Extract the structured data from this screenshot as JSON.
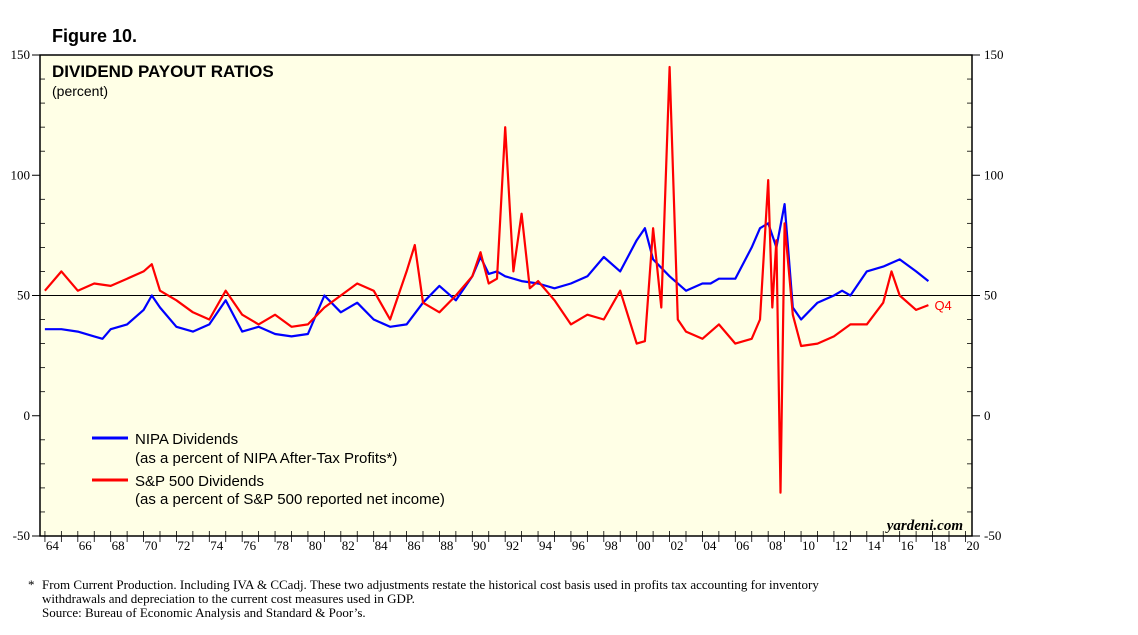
{
  "figure_label": "Figure 10.",
  "colors": {
    "background": "#FFFFE6",
    "nipa": "#0000FF",
    "sp500": "#FF0000",
    "frame": "#000000"
  },
  "chart_data": {
    "type": "line",
    "title": "DIVIDEND PAYOUT RATIOS",
    "subtitle": "(percent)",
    "source_mark": "yardeni.com",
    "xlim": [
      1963.7,
      2020.4
    ],
    "ylim": [
      -50,
      150
    ],
    "y_ticks": [
      -50,
      0,
      50,
      100,
      150
    ],
    "x_ticks": [
      {
        "year": 1964,
        "label": "64"
      },
      {
        "year": 1966,
        "label": "66"
      },
      {
        "year": 1968,
        "label": "68"
      },
      {
        "year": 1970,
        "label": "70"
      },
      {
        "year": 1972,
        "label": "72"
      },
      {
        "year": 1974,
        "label": "74"
      },
      {
        "year": 1976,
        "label": "76"
      },
      {
        "year": 1978,
        "label": "78"
      },
      {
        "year": 1980,
        "label": "80"
      },
      {
        "year": 1982,
        "label": "82"
      },
      {
        "year": 1984,
        "label": "84"
      },
      {
        "year": 1986,
        "label": "86"
      },
      {
        "year": 1988,
        "label": "88"
      },
      {
        "year": 1990,
        "label": "90"
      },
      {
        "year": 1992,
        "label": "92"
      },
      {
        "year": 1994,
        "label": "94"
      },
      {
        "year": 1996,
        "label": "96"
      },
      {
        "year": 1998,
        "label": "98"
      },
      {
        "year": 2000,
        "label": "00"
      },
      {
        "year": 2002,
        "label": "02"
      },
      {
        "year": 2004,
        "label": "04"
      },
      {
        "year": 2006,
        "label": "06"
      },
      {
        "year": 2008,
        "label": "08"
      },
      {
        "year": 2010,
        "label": "10"
      },
      {
        "year": 2012,
        "label": "12"
      },
      {
        "year": 2014,
        "label": "14"
      },
      {
        "year": 2016,
        "label": "16"
      },
      {
        "year": 2018,
        "label": "18"
      },
      {
        "year": 2020,
        "label": "20"
      }
    ],
    "reference_line": 50,
    "annotation": {
      "text": "Q4",
      "x": 2017.75,
      "y": 46
    },
    "series": [
      {
        "name": "NIPA Dividends",
        "legend_note": "(as a percent of NIPA After-Tax Profits*)",
        "color": "#0000FF",
        "x": [
          1964,
          1965,
          1966,
          1967,
          1967.5,
          1968,
          1969,
          1970,
          1970.5,
          1971,
          1972,
          1973,
          1974,
          1975,
          1976,
          1977,
          1978,
          1979,
          1980,
          1981,
          1982,
          1983,
          1984,
          1985,
          1986,
          1987,
          1988,
          1989,
          1990,
          1990.5,
          1991,
          1991.5,
          1992,
          1993,
          1994,
          1995,
          1996,
          1997,
          1998,
          1999,
          2000,
          2000.5,
          2001,
          2002,
          2003,
          2004,
          2004.5,
          2005,
          2006,
          2007,
          2007.5,
          2008,
          2008.5,
          2009,
          2009.5,
          2010,
          2011,
          2012,
          2012.5,
          2013,
          2014,
          2015,
          2016,
          2017,
          2017.75
        ],
        "values": [
          36,
          36,
          35,
          33,
          32,
          36,
          38,
          44,
          50,
          45,
          37,
          35,
          38,
          48,
          35,
          37,
          34,
          33,
          34,
          50,
          43,
          47,
          40,
          37,
          38,
          47,
          54,
          48,
          58,
          66,
          59,
          60,
          58,
          56,
          55,
          53,
          55,
          58,
          66,
          60,
          73,
          78,
          65,
          58,
          52,
          55,
          55,
          57,
          57,
          70,
          78,
          80,
          70,
          88,
          45,
          40,
          47,
          50,
          52,
          50,
          60,
          62,
          65,
          60,
          56
        ]
      },
      {
        "name": "S&P 500 Dividends",
        "legend_note": "(as a percent of S&P 500 reported net income)",
        "color": "#FF0000",
        "x": [
          1964,
          1965,
          1966,
          1967,
          1968,
          1969,
          1970,
          1970.5,
          1971,
          1972,
          1973,
          1974,
          1975,
          1976,
          1977,
          1978,
          1979,
          1980,
          1981,
          1982,
          1983,
          1984,
          1985,
          1986,
          1986.5,
          1987,
          1988,
          1989,
          1990,
          1990.5,
          1991,
          1991.5,
          1992,
          1992.5,
          1993,
          1993.5,
          1994,
          1995,
          1996,
          1997,
          1998,
          1999,
          2000,
          2000.5,
          2001,
          2001.5,
          2002,
          2002.5,
          2003,
          2004,
          2005,
          2006,
          2007,
          2007.5,
          2008,
          2008.25,
          2008.5,
          2008.75,
          2009,
          2009.5,
          2010,
          2011,
          2012,
          2013,
          2014,
          2015,
          2015.5,
          2016,
          2017,
          2017.75
        ],
        "values": [
          52,
          60,
          52,
          55,
          54,
          57,
          60,
          63,
          52,
          48,
          43,
          40,
          52,
          42,
          38,
          42,
          37,
          38,
          45,
          50,
          55,
          52,
          40,
          60,
          71,
          47,
          43,
          50,
          58,
          68,
          55,
          57,
          120,
          60,
          84,
          53,
          56,
          48,
          38,
          42,
          40,
          52,
          30,
          31,
          78,
          45,
          145,
          40,
          35,
          32,
          38,
          30,
          32,
          40,
          98,
          45,
          73,
          -32,
          80,
          42,
          29,
          30,
          33,
          38,
          38,
          47,
          60,
          50,
          44,
          46
        ]
      }
    ]
  },
  "footnotes": {
    "star": "*",
    "line1": "From Current Production. Including IVA & CCadj. These two adjustments restate the historical cost basis used in profits tax accounting for inventory",
    "line2": "withdrawals and depreciation to the current cost measures used in GDP.",
    "source": "Source: Bureau of Economic Analysis and Standard & Poor’s."
  }
}
